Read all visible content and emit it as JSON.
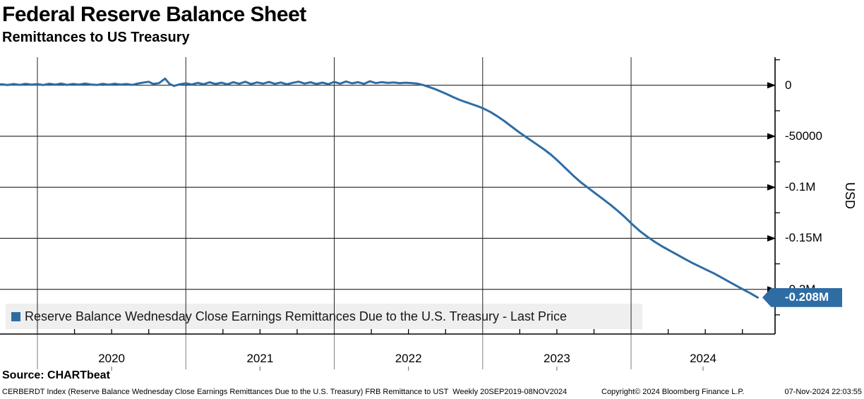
{
  "header": {
    "title": "Federal Reserve Balance Sheet",
    "subtitle": "Remittances to US Treasury"
  },
  "legend": {
    "label": "Reserve Balance Wednesday Close Earnings Remittances Due to the U.S. Treasury - Last Price"
  },
  "last_price": {
    "label": "-0.208M",
    "value": -208000
  },
  "axis_labels": {
    "y_right": "USD"
  },
  "source": {
    "label": "Source: CHARTbeat"
  },
  "footer": {
    "description": "CERBERDT Index (Reserve Balance Wednesday Close Earnings Remittances Due to the U.S. Treasury) FRB Remittance to UST  Weekly 20SEP2019-08NOV2024",
    "copyright": "Copyright© 2024 Bloomberg Finance L.P.",
    "timestamp": "07-Nov-2024 22:03:55"
  },
  "colors": {
    "line": "#2e6da4",
    "badge_bg": "#2e6da4",
    "badge_text": "#ffffff",
    "legend_bg": "#efefef",
    "grid": "#222222",
    "axis": "#000000",
    "divider": "#808080"
  },
  "chart_data": {
    "type": "line",
    "title": "Federal Reserve Balance Sheet",
    "subtitle": "Remittances to US Treasury",
    "ylabel": "USD",
    "xlabel": "",
    "grid": true,
    "legend_position": "bottom-left",
    "xlim": [
      2019.748,
      2024.97
    ],
    "ylim": [
      -243800,
      27500
    ],
    "yticks": [
      {
        "value": 0,
        "label": "0"
      },
      {
        "value": -50000,
        "label": "-50000"
      },
      {
        "value": -100000,
        "label": "-0.1M"
      },
      {
        "value": -150000,
        "label": "-0.15M"
      },
      {
        "value": -200000,
        "label": "-0.2M"
      }
    ],
    "yticks_minor": [
      25000,
      -25000,
      -75000,
      -125000,
      -175000,
      -225000
    ],
    "xticks": [
      {
        "year": 2020,
        "label": "2020"
      },
      {
        "year": 2021,
        "label": "2021"
      },
      {
        "year": 2022,
        "label": "2022"
      },
      {
        "year": 2023,
        "label": "2023"
      },
      {
        "year": 2024,
        "label": "2024"
      }
    ],
    "x_minor_interval": 0.25,
    "series": [
      {
        "name": "Reserve Balance Wednesday Close Earnings Remittances Due to the U.S. Treasury - Last Price",
        "color": "#2e6da4",
        "points": [
          [
            2019.72,
            300
          ],
          [
            2019.76,
            1000
          ],
          [
            2019.8,
            200
          ],
          [
            2019.84,
            1200
          ],
          [
            2019.88,
            400
          ],
          [
            2019.92,
            1400
          ],
          [
            2019.96,
            600
          ],
          [
            2020.0,
            1100
          ],
          [
            2020.04,
            300
          ],
          [
            2020.08,
            1500
          ],
          [
            2020.12,
            600
          ],
          [
            2020.16,
            1700
          ],
          [
            2020.2,
            400
          ],
          [
            2020.24,
            1300
          ],
          [
            2020.28,
            600
          ],
          [
            2020.32,
            1600
          ],
          [
            2020.36,
            800
          ],
          [
            2020.4,
            300
          ],
          [
            2020.44,
            1400
          ],
          [
            2020.48,
            500
          ],
          [
            2020.52,
            1500
          ],
          [
            2020.56,
            700
          ],
          [
            2020.6,
            1200
          ],
          [
            2020.64,
            400
          ],
          [
            2020.68,
            1800
          ],
          [
            2020.72,
            2800
          ],
          [
            2020.75,
            3400
          ],
          [
            2020.78,
            1300
          ],
          [
            2020.82,
            2100
          ],
          [
            2020.86,
            6500
          ],
          [
            2020.89,
            1400
          ],
          [
            2020.92,
            -700
          ],
          [
            2020.96,
            1000
          ],
          [
            2021.0,
            1900
          ],
          [
            2021.04,
            700
          ],
          [
            2021.08,
            2300
          ],
          [
            2021.12,
            1000
          ],
          [
            2021.16,
            2900
          ],
          [
            2021.2,
            1300
          ],
          [
            2021.24,
            2500
          ],
          [
            2021.28,
            900
          ],
          [
            2021.32,
            3000
          ],
          [
            2021.36,
            1500
          ],
          [
            2021.4,
            3400
          ],
          [
            2021.44,
            1200
          ],
          [
            2021.48,
            2800
          ],
          [
            2021.52,
            1600
          ],
          [
            2021.56,
            3200
          ],
          [
            2021.6,
            1400
          ],
          [
            2021.64,
            2700
          ],
          [
            2021.68,
            1000
          ],
          [
            2021.72,
            2400
          ],
          [
            2021.76,
            3500
          ],
          [
            2021.8,
            1700
          ],
          [
            2021.84,
            2900
          ],
          [
            2021.88,
            1300
          ],
          [
            2021.92,
            2600
          ],
          [
            2021.96,
            1100
          ],
          [
            2022.0,
            3300
          ],
          [
            2022.04,
            1600
          ],
          [
            2022.08,
            3700
          ],
          [
            2022.12,
            1900
          ],
          [
            2022.16,
            3000
          ],
          [
            2022.2,
            1400
          ],
          [
            2022.24,
            3900
          ],
          [
            2022.28,
            2100
          ],
          [
            2022.32,
            3100
          ],
          [
            2022.36,
            2300
          ],
          [
            2022.4,
            2700
          ],
          [
            2022.44,
            2100
          ],
          [
            2022.48,
            2500
          ],
          [
            2022.52,
            2200
          ],
          [
            2022.56,
            1600
          ],
          [
            2022.6,
            200
          ],
          [
            2022.64,
            -1800
          ],
          [
            2022.68,
            -3800
          ],
          [
            2022.72,
            -6200
          ],
          [
            2022.76,
            -8800
          ],
          [
            2022.8,
            -11500
          ],
          [
            2022.84,
            -14000
          ],
          [
            2022.88,
            -16200
          ],
          [
            2022.92,
            -18200
          ],
          [
            2022.96,
            -20200
          ],
          [
            2023.0,
            -22500
          ],
          [
            2023.05,
            -26000
          ],
          [
            2023.1,
            -30500
          ],
          [
            2023.15,
            -35500
          ],
          [
            2023.2,
            -41000
          ],
          [
            2023.25,
            -46500
          ],
          [
            2023.31,
            -52500
          ],
          [
            2023.36,
            -57500
          ],
          [
            2023.41,
            -62500
          ],
          [
            2023.46,
            -68000
          ],
          [
            2023.51,
            -74500
          ],
          [
            2023.56,
            -81500
          ],
          [
            2023.61,
            -88500
          ],
          [
            2023.66,
            -95000
          ],
          [
            2023.71,
            -100500
          ],
          [
            2023.76,
            -106000
          ],
          [
            2023.81,
            -111500
          ],
          [
            2023.86,
            -117000
          ],
          [
            2023.91,
            -123000
          ],
          [
            2023.96,
            -129500
          ],
          [
            2024.01,
            -136500
          ],
          [
            2024.06,
            -143000
          ],
          [
            2024.11,
            -148500
          ],
          [
            2024.16,
            -153500
          ],
          [
            2024.21,
            -158000
          ],
          [
            2024.26,
            -162000
          ],
          [
            2024.31,
            -166000
          ],
          [
            2024.36,
            -170000
          ],
          [
            2024.41,
            -174000
          ],
          [
            2024.46,
            -177500
          ],
          [
            2024.51,
            -181000
          ],
          [
            2024.56,
            -184500
          ],
          [
            2024.61,
            -188500
          ],
          [
            2024.66,
            -192500
          ],
          [
            2024.71,
            -196500
          ],
          [
            2024.76,
            -200500
          ],
          [
            2024.8,
            -203500
          ],
          [
            2024.853,
            -208000
          ]
        ]
      }
    ]
  }
}
